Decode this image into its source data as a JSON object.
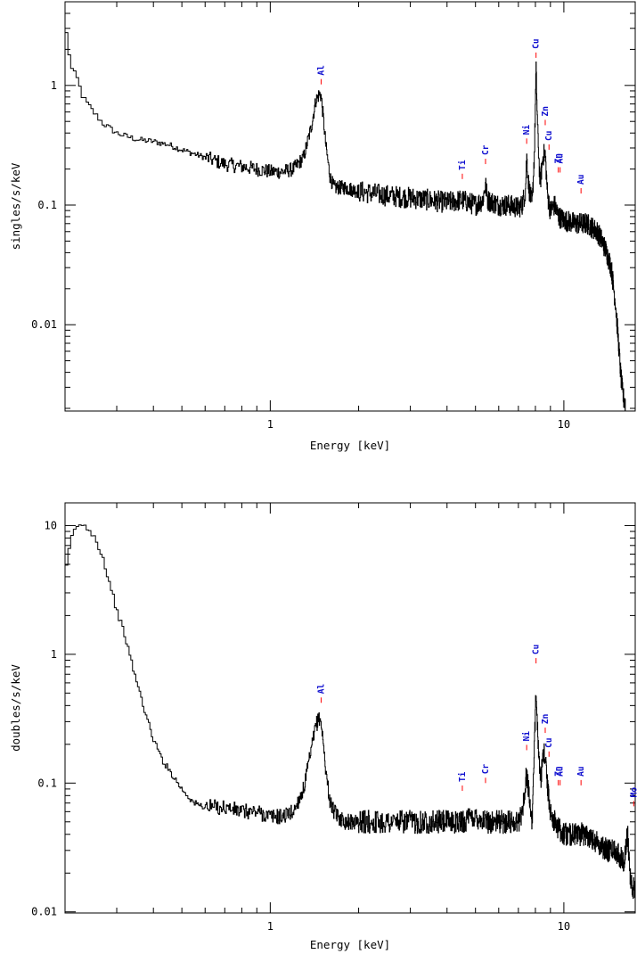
{
  "chart_data": [
    {
      "type": "line",
      "xlabel": "Energy [keV]",
      "ylabel": "singles/s/keV",
      "xscale": "log",
      "yscale": "log",
      "xlim": [
        0.2,
        17.5
      ],
      "ylim": [
        0.0019,
        5.0
      ],
      "x_ticks": [
        {
          "value": 1,
          "label": "1"
        },
        {
          "value": 10,
          "label": "10"
        }
      ],
      "y_ticks": [
        {
          "value": 0.01,
          "label": "0.01"
        },
        {
          "value": 0.1,
          "label": "0.1"
        },
        {
          "value": 1,
          "label": "1"
        }
      ],
      "series": [
        {
          "x": [
            0.2,
            0.21,
            0.22,
            0.23,
            0.25,
            0.27,
            0.3,
            0.33,
            0.36,
            0.4,
            0.45,
            0.5,
            0.6,
            0.7,
            0.8,
            0.9,
            1.0,
            1.1,
            1.2,
            1.3,
            1.38,
            1.43,
            1.47,
            1.49,
            1.51,
            1.55,
            1.6,
            1.65,
            1.7,
            1.8,
            2.0,
            2.5,
            3.0,
            3.5,
            4.0,
            4.5,
            5.0,
            5.3,
            5.41,
            5.5,
            6.0,
            6.5,
            7.0,
            7.2,
            7.4,
            7.47,
            7.6,
            7.8,
            7.95,
            8.04,
            8.15,
            8.3,
            8.5,
            8.64,
            8.8,
            9.0,
            9.3,
            9.6,
            10.0,
            11.0,
            12.0,
            13.0,
            13.5,
            14.0,
            14.5,
            15.0,
            15.3,
            15.6,
            15.9,
            16.2
          ],
          "y": [
            3.3,
            1.4,
            1.15,
            0.8,
            0.6,
            0.48,
            0.4,
            0.37,
            0.35,
            0.34,
            0.32,
            0.29,
            0.25,
            0.22,
            0.21,
            0.2,
            0.19,
            0.19,
            0.2,
            0.25,
            0.45,
            0.75,
            0.85,
            0.82,
            0.6,
            0.3,
            0.17,
            0.14,
            0.14,
            0.14,
            0.13,
            0.12,
            0.115,
            0.11,
            0.105,
            0.11,
            0.1,
            0.11,
            0.15,
            0.11,
            0.1,
            0.1,
            0.095,
            0.1,
            0.13,
            0.26,
            0.14,
            0.1,
            0.3,
            1.38,
            0.4,
            0.15,
            0.26,
            0.27,
            0.12,
            0.09,
            0.1,
            0.08,
            0.075,
            0.07,
            0.07,
            0.06,
            0.05,
            0.04,
            0.03,
            0.015,
            0.008,
            0.004,
            0.0025,
            0.0022
          ]
        }
      ],
      "annotations": [
        {
          "label": "Al",
          "x": 1.49,
          "y": 1.02
        },
        {
          "label": "Ti",
          "x": 4.51,
          "y": 0.165
        },
        {
          "label": "Cr",
          "x": 5.41,
          "y": 0.22
        },
        {
          "label": "Ni",
          "x": 7.47,
          "y": 0.325
        },
        {
          "label": "Cu",
          "x": 8.04,
          "y": 1.7
        },
        {
          "label": "Zn",
          "x": 8.64,
          "y": 0.465
        },
        {
          "label": "Cu",
          "x": 8.9,
          "y": 0.29
        },
        {
          "label": "Zn",
          "x": 9.57,
          "y": 0.187
        },
        {
          "label": "Au",
          "x": 9.71,
          "y": 0.187
        },
        {
          "label": "Au",
          "x": 11.44,
          "y": 0.125
        }
      ]
    },
    {
      "type": "line",
      "xlabel": "Energy [keV]",
      "ylabel": "doubles/s/keV",
      "xscale": "log",
      "yscale": "log",
      "xlim": [
        0.2,
        17.5
      ],
      "ylim": [
        0.0098,
        15.0
      ],
      "x_ticks": [
        {
          "value": 1,
          "label": "1"
        },
        {
          "value": 10,
          "label": "10"
        }
      ],
      "y_ticks": [
        {
          "value": 0.01,
          "label": "0.01"
        },
        {
          "value": 0.1,
          "label": "0.1"
        },
        {
          "value": 1,
          "label": "1"
        },
        {
          "value": 10,
          "label": "10"
        }
      ],
      "series": [
        {
          "x": [
            0.2,
            0.21,
            0.22,
            0.23,
            0.24,
            0.25,
            0.26,
            0.27,
            0.28,
            0.29,
            0.3,
            0.32,
            0.34,
            0.36,
            0.38,
            0.4,
            0.43,
            0.46,
            0.5,
            0.55,
            0.6,
            0.7,
            0.8,
            0.9,
            1.0,
            1.1,
            1.2,
            1.3,
            1.38,
            1.43,
            1.47,
            1.49,
            1.51,
            1.55,
            1.6,
            1.65,
            1.7,
            1.8,
            2.0,
            2.5,
            3.0,
            3.5,
            4.0,
            4.5,
            5.0,
            5.5,
            6.0,
            6.5,
            7.0,
            7.2,
            7.4,
            7.47,
            7.6,
            7.8,
            7.95,
            8.04,
            8.15,
            8.3,
            8.5,
            8.64,
            8.8,
            9.0,
            9.3,
            9.6,
            10.0,
            11.0,
            12.0,
            13.0,
            14.0,
            15.0,
            16.0,
            16.5,
            16.8,
            17.1,
            17.4
          ],
          "y": [
            4.0,
            8.0,
            10.0,
            10.0,
            9.5,
            8.5,
            7.0,
            5.5,
            4.0,
            3.0,
            2.2,
            1.4,
            0.8,
            0.5,
            0.32,
            0.22,
            0.15,
            0.12,
            0.09,
            0.07,
            0.065,
            0.065,
            0.06,
            0.06,
            0.055,
            0.055,
            0.06,
            0.09,
            0.18,
            0.28,
            0.32,
            0.3,
            0.22,
            0.12,
            0.07,
            0.06,
            0.055,
            0.05,
            0.05,
            0.05,
            0.05,
            0.05,
            0.05,
            0.05,
            0.055,
            0.05,
            0.05,
            0.05,
            0.05,
            0.06,
            0.09,
            0.13,
            0.08,
            0.05,
            0.2,
            0.6,
            0.25,
            0.1,
            0.15,
            0.18,
            0.09,
            0.06,
            0.05,
            0.045,
            0.04,
            0.04,
            0.04,
            0.035,
            0.03,
            0.03,
            0.025,
            0.04,
            0.02,
            0.015,
            0.015
          ]
        }
      ],
      "annotations": [
        {
          "label": "Al",
          "x": 1.49,
          "y": 0.42
        },
        {
          "label": "Ti",
          "x": 4.51,
          "y": 0.087
        },
        {
          "label": "Cr",
          "x": 5.41,
          "y": 0.1
        },
        {
          "label": "Ni",
          "x": 7.47,
          "y": 0.18
        },
        {
          "label": "Cu",
          "x": 8.04,
          "y": 0.85
        },
        {
          "label": "Zn",
          "x": 8.64,
          "y": 0.245
        },
        {
          "label": "Cu",
          "x": 8.9,
          "y": 0.16
        },
        {
          "label": "Zn",
          "x": 9.57,
          "y": 0.096
        },
        {
          "label": "Au",
          "x": 9.71,
          "y": 0.096
        },
        {
          "label": "Au",
          "x": 11.44,
          "y": 0.096
        },
        {
          "label": "Mo",
          "x": 17.3,
          "y": 0.066
        }
      ]
    }
  ]
}
